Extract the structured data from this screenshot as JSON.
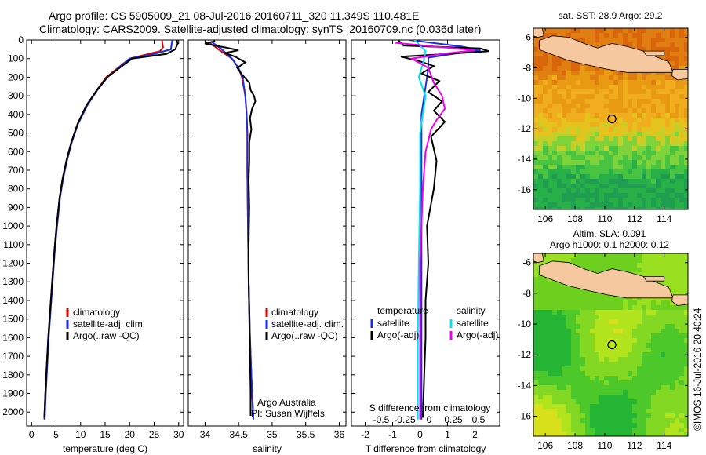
{
  "header": {
    "title_line1": "Argo profile: CS 5905009_21 08-Jul-2016 20160711_320 11.349S 110.481E",
    "title_line2": "Climatology: CARS2009. Satellite-adjusted climatology: synTS_20160709.nc (0.036d later)"
  },
  "colors": {
    "climatology": "#e00000",
    "satellite": "#1a2ee0",
    "argo": "#000000",
    "sat_salinity": "#00e5ee",
    "argo_salinity": "#ee00ee",
    "land": "#f5c8a0"
  },
  "chart_data": [
    {
      "type": "line",
      "name": "temperature",
      "xlabel": "temperature (deg C)",
      "xlim": [
        -1,
        31
      ],
      "xticks": [
        "0",
        "5",
        "10",
        "15",
        "20",
        "25",
        "30"
      ],
      "ylim": [
        0,
        2075
      ],
      "yticks": [
        "0",
        "100",
        "200",
        "300",
        "400",
        "500",
        "600",
        "700",
        "800",
        "900",
        "1000",
        "1100",
        "1200",
        "1300",
        "1400",
        "1500",
        "1600",
        "1700",
        "1800",
        "1900",
        "2000"
      ],
      "legend": [
        "climatology",
        "satellite-adj. clim.",
        "Argo(..raw -QC)"
      ],
      "series": [
        {
          "name": "climatology",
          "color": "climatology",
          "points": [
            [
              26.6,
              0
            ],
            [
              26.8,
              40
            ],
            [
              26.2,
              60
            ],
            [
              20,
              100
            ],
            [
              15.2,
              200
            ],
            [
              13.3,
              270
            ],
            [
              11.3,
              350
            ],
            [
              9.4,
              450
            ],
            [
              8.1,
              550
            ],
            [
              7.1,
              650
            ],
            [
              6.3,
              750
            ],
            [
              5.7,
              850
            ],
            [
              5.1,
              1000
            ],
            [
              4.6,
              1150
            ],
            [
              4.2,
              1300
            ],
            [
              3.8,
              1450
            ],
            [
              3.4,
              1600
            ],
            [
              3.1,
              1750
            ],
            [
              2.8,
              1900
            ],
            [
              2.6,
              2040
            ]
          ]
        },
        {
          "name": "satellite-adj. clim.",
          "color": "satellite",
          "points": [
            [
              28.7,
              0
            ],
            [
              28.4,
              50
            ],
            [
              25,
              75
            ],
            [
              20,
              100
            ],
            [
              15.5,
              200
            ],
            [
              13.4,
              270
            ],
            [
              11.4,
              350
            ],
            [
              9.5,
              450
            ],
            [
              8.2,
              550
            ],
            [
              7.2,
              650
            ],
            [
              6.4,
              750
            ],
            [
              5.8,
              850
            ],
            [
              5.2,
              1000
            ],
            [
              4.7,
              1150
            ],
            [
              4.3,
              1300
            ],
            [
              3.9,
              1450
            ],
            [
              3.5,
              1600
            ],
            [
              3.2,
              1750
            ],
            [
              2.9,
              1900
            ],
            [
              2.7,
              2040
            ]
          ]
        },
        {
          "name": "Argo(..raw -QC)",
          "color": "argo",
          "points": [
            [
              29.6,
              0
            ],
            [
              29.8,
              20
            ],
            [
              29.3,
              50
            ],
            [
              27.5,
              75
            ],
            [
              20.5,
              100
            ],
            [
              15.4,
              200
            ],
            [
              13.3,
              270
            ],
            [
              11.2,
              350
            ],
            [
              9.4,
              450
            ],
            [
              8.1,
              550
            ],
            [
              7.1,
              650
            ],
            [
              6.3,
              750
            ],
            [
              5.7,
              850
            ],
            [
              5.1,
              1000
            ],
            [
              4.6,
              1150
            ],
            [
              4.2,
              1300
            ],
            [
              3.8,
              1450
            ],
            [
              3.4,
              1600
            ],
            [
              3.1,
              1750
            ],
            [
              2.8,
              1900
            ],
            [
              2.6,
              2030
            ]
          ]
        }
      ]
    },
    {
      "type": "line",
      "name": "salinity",
      "xlabel": "salinity",
      "xlim": [
        33.75,
        36.1
      ],
      "xticks": [
        "34",
        "34.5",
        "35",
        "35.5",
        "36"
      ],
      "ylim": [
        0,
        2075
      ],
      "legend": [
        "climatology",
        "satellite-adj. clim.",
        "Argo(..raw -QC)"
      ],
      "annotation": [
        "Argo Australia",
        "PI: Susan Wijffels"
      ],
      "series": [
        {
          "name": "climatology",
          "color": "climatology",
          "points": [
            [
              34.05,
              10
            ],
            [
              34.2,
              50
            ],
            [
              34.4,
              100
            ],
            [
              34.5,
              150
            ],
            [
              34.55,
              200
            ],
            [
              34.6,
              300
            ],
            [
              34.62,
              400
            ],
            [
              34.63,
              500
            ],
            [
              34.63,
              700
            ],
            [
              34.64,
              1000
            ],
            [
              34.65,
              1300
            ],
            [
              34.67,
              1600
            ],
            [
              34.69,
              1800
            ],
            [
              34.72,
              2040
            ]
          ]
        },
        {
          "name": "satellite-adj. clim.",
          "color": "satellite",
          "points": [
            [
              34.1,
              10
            ],
            [
              34.25,
              50
            ],
            [
              34.4,
              100
            ],
            [
              34.5,
              150
            ],
            [
              34.56,
              200
            ],
            [
              34.6,
              300
            ],
            [
              34.62,
              400
            ],
            [
              34.63,
              500
            ],
            [
              34.63,
              700
            ],
            [
              34.64,
              1000
            ],
            [
              34.65,
              1300
            ],
            [
              34.67,
              1600
            ],
            [
              34.69,
              1800
            ],
            [
              34.72,
              2040
            ]
          ]
        },
        {
          "name": "Argo(..raw -QC)",
          "color": "argo",
          "points": [
            [
              34.15,
              5
            ],
            [
              34.0,
              20
            ],
            [
              34.3,
              40
            ],
            [
              34.5,
              55
            ],
            [
              34.3,
              70
            ],
            [
              34.45,
              90
            ],
            [
              34.6,
              120
            ],
            [
              34.48,
              150
            ],
            [
              34.55,
              185
            ],
            [
              34.66,
              230
            ],
            [
              34.68,
              270
            ],
            [
              34.73,
              300
            ],
            [
              34.75,
              330
            ],
            [
              34.7,
              370
            ],
            [
              34.67,
              420
            ],
            [
              34.69,
              480
            ],
            [
              34.66,
              550
            ],
            [
              34.66,
              650
            ],
            [
              34.65,
              750
            ],
            [
              34.66,
              900
            ],
            [
              34.65,
              1100
            ],
            [
              34.65,
              1300
            ],
            [
              34.66,
              1500
            ],
            [
              34.67,
              1700
            ],
            [
              34.68,
              1900
            ],
            [
              34.68,
              2020
            ]
          ]
        }
      ]
    },
    {
      "type": "line",
      "name": "difference",
      "xlabel": "T difference from climatology",
      "xlabel_top": "S difference from climatology",
      "xlim": [
        -2.5,
        2.9
      ],
      "xticks": [
        "-2",
        "-1",
        "0",
        "1",
        "2"
      ],
      "xticks_top": [
        "-0.5",
        "-0.25",
        "0",
        "0.25",
        "0.5"
      ],
      "legend_left_title": "temperature",
      "legend_right_title": "salinity",
      "legend_left": [
        "satellite",
        "Argo(-adj)"
      ],
      "legend_right": [
        "satellite",
        "Argo(-adj)"
      ],
      "series": [
        {
          "name": "T satellite",
          "color": "satellite",
          "points": [
            [
              -0.4,
              0
            ],
            [
              1.5,
              35
            ],
            [
              2.2,
              55
            ],
            [
              1.4,
              70
            ],
            [
              0.3,
              95
            ],
            [
              0.3,
              150
            ],
            [
              0.25,
              200
            ],
            [
              0.15,
              300
            ],
            [
              0.05,
              400
            ],
            [
              0.05,
              600
            ],
            [
              0.05,
              1000
            ],
            [
              0.05,
              1500
            ],
            [
              0.05,
              2040
            ]
          ]
        },
        {
          "name": "T Argo(-adj)",
          "color": "argo",
          "points": [
            [
              -0.8,
              0
            ],
            [
              -0.6,
              30
            ],
            [
              2.2,
              45
            ],
            [
              2.5,
              60
            ],
            [
              1.0,
              75
            ],
            [
              -0.7,
              90
            ],
            [
              -0.1,
              110
            ],
            [
              0.5,
              140
            ],
            [
              0.05,
              180
            ],
            [
              0.7,
              220
            ],
            [
              0.3,
              280
            ],
            [
              0.8,
              330
            ],
            [
              0.5,
              380
            ],
            [
              0.9,
              440
            ],
            [
              0.4,
              520
            ],
            [
              0.6,
              650
            ],
            [
              0.5,
              800
            ],
            [
              0.25,
              1000
            ],
            [
              0.3,
              1200
            ],
            [
              0.2,
              1400
            ],
            [
              0.2,
              1600
            ],
            [
              0.15,
              1800
            ],
            [
              0.1,
              2030
            ]
          ]
        },
        {
          "name": "S satellite",
          "color": "sat_salinity",
          "points": [
            [
              -0.2,
              0
            ],
            [
              0.2,
              60
            ],
            [
              0.1,
              130
            ],
            [
              -0.05,
              200
            ],
            [
              0.2,
              300
            ],
            [
              0.1,
              400
            ],
            [
              0.0,
              500
            ],
            [
              0.0,
              800
            ],
            [
              -0.05,
              1200
            ],
            [
              -0.08,
              1600
            ],
            [
              -0.08,
              2040
            ]
          ]
        },
        {
          "name": "S Argo(-adj)",
          "color": "argo_salinity",
          "points": [
            [
              -0.9,
              15
            ],
            [
              0.5,
              35
            ],
            [
              2.0,
              55
            ],
            [
              0.8,
              75
            ],
            [
              -0.3,
              100
            ],
            [
              0.3,
              150
            ],
            [
              0.5,
              230
            ],
            [
              0.8,
              300
            ],
            [
              0.9,
              370
            ],
            [
              0.6,
              430
            ],
            [
              0.4,
              480
            ],
            [
              0.2,
              600
            ],
            [
              0.1,
              800
            ],
            [
              0.0,
              1200
            ],
            [
              0.0,
              2040
            ]
          ]
        }
      ]
    }
  ],
  "sst_map": {
    "title": "sat. SST: 28.9 Argo: 29.2",
    "xlim": [
      105.2,
      115.6
    ],
    "ylim": [
      -17.3,
      -5.4
    ],
    "xticks": [
      "106",
      "108",
      "110",
      "112",
      "114"
    ],
    "yticks": [
      "-6",
      "-8",
      "-10",
      "-12",
      "-14",
      "-16"
    ],
    "float_lon": 110.48,
    "float_lat": -11.35
  },
  "sla_map": {
    "title_line1": "Altim. SLA: 0.091",
    "title_line2": "Argo h1000: 0.1 h2000: 0.12",
    "xlim": [
      105.2,
      115.6
    ],
    "ylim": [
      -17.3,
      -5.4
    ],
    "xticks": [
      "106",
      "108",
      "110",
      "112",
      "114"
    ],
    "yticks": [
      "-6",
      "-8",
      "-10",
      "-12",
      "-14",
      "-16"
    ],
    "float_lon": 110.48,
    "float_lat": -11.35
  },
  "credit": "©IMOS 16-Jul-2016 20:40:24"
}
